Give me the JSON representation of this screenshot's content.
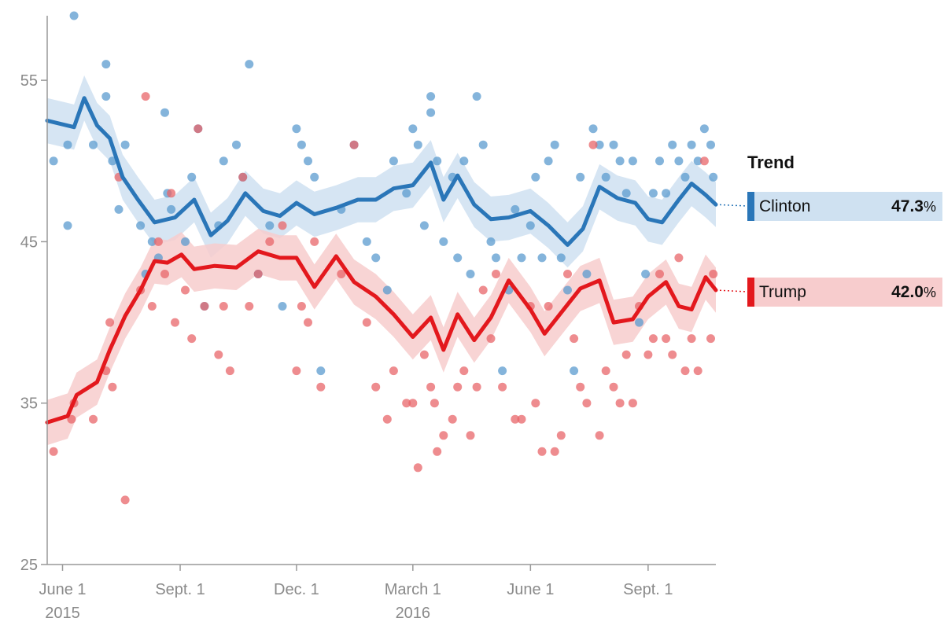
{
  "chart_data": {
    "type": "scatter",
    "title": "",
    "xlabel": "",
    "ylabel": "",
    "ylim": [
      25,
      59
    ],
    "xlim": [
      "2015-05-20",
      "2016-10-24"
    ],
    "y_ticks": [
      55,
      45,
      35,
      25
    ],
    "x_ticks": [
      {
        "date": "2015-06-01",
        "label": "June 1",
        "sublabel": "2015"
      },
      {
        "date": "2015-09-01",
        "label": "Sept. 1",
        "sublabel": ""
      },
      {
        "date": "2015-12-01",
        "label": "Dec. 1",
        "sublabel": ""
      },
      {
        "date": "2016-03-01",
        "label": "March 1",
        "sublabel": "2016"
      },
      {
        "date": "2016-06-01",
        "label": "June 1",
        "sublabel": ""
      },
      {
        "date": "2016-09-01",
        "label": "Sept. 1",
        "sublabel": ""
      }
    ],
    "grid": false,
    "legend_position": "right",
    "legend_title": "Trend",
    "series": [
      {
        "name": "Clinton",
        "color": "#2a76b8",
        "band_color": "#cfe1f1",
        "point_color": "#5b9bcf",
        "current_value": "47.3",
        "trend": [
          [
            "2015-05-20",
            52.5
          ],
          [
            "2015-06-10",
            52.1
          ],
          [
            "2015-06-18",
            53.9
          ],
          [
            "2015-06-28",
            52.2
          ],
          [
            "2015-07-08",
            51.4
          ],
          [
            "2015-07-18",
            49.0
          ],
          [
            "2015-07-30",
            47.6
          ],
          [
            "2015-08-12",
            46.2
          ],
          [
            "2015-08-28",
            46.5
          ],
          [
            "2015-09-12",
            47.6
          ],
          [
            "2015-09-25",
            45.4
          ],
          [
            "2015-10-08",
            46.3
          ],
          [
            "2015-10-22",
            48.0
          ],
          [
            "2015-11-05",
            46.9
          ],
          [
            "2015-11-18",
            46.6
          ],
          [
            "2015-12-01",
            47.4
          ],
          [
            "2015-12-15",
            46.7
          ],
          [
            "2016-01-01",
            47.1
          ],
          [
            "2016-01-18",
            47.6
          ],
          [
            "2016-02-01",
            47.6
          ],
          [
            "2016-02-15",
            48.3
          ],
          [
            "2016-03-01",
            48.5
          ],
          [
            "2016-03-15",
            49.9
          ],
          [
            "2016-03-25",
            47.6
          ],
          [
            "2016-04-05",
            49.1
          ],
          [
            "2016-04-18",
            47.3
          ],
          [
            "2016-05-01",
            46.4
          ],
          [
            "2016-05-15",
            46.5
          ],
          [
            "2016-06-01",
            46.9
          ],
          [
            "2016-06-15",
            46.0
          ],
          [
            "2016-06-30",
            44.8
          ],
          [
            "2016-07-12",
            45.8
          ],
          [
            "2016-07-25",
            48.4
          ],
          [
            "2016-08-08",
            47.7
          ],
          [
            "2016-08-22",
            47.4
          ],
          [
            "2016-09-01",
            46.4
          ],
          [
            "2016-09-12",
            46.2
          ],
          [
            "2016-09-25",
            47.6
          ],
          [
            "2016-10-05",
            48.6
          ],
          [
            "2016-10-16",
            47.9
          ],
          [
            "2016-10-24",
            47.3
          ]
        ],
        "polls": [
          [
            "2015-05-25",
            50
          ],
          [
            "2015-06-05",
            51
          ],
          [
            "2015-06-05",
            46
          ],
          [
            "2015-06-10",
            59
          ],
          [
            "2015-06-25",
            51
          ],
          [
            "2015-07-05",
            54
          ],
          [
            "2015-07-05",
            56
          ],
          [
            "2015-07-10",
            50
          ],
          [
            "2015-07-15",
            47
          ],
          [
            "2015-07-20",
            51
          ],
          [
            "2015-08-01",
            46
          ],
          [
            "2015-08-05",
            43
          ],
          [
            "2015-08-10",
            45
          ],
          [
            "2015-08-15",
            44
          ],
          [
            "2015-08-20",
            53
          ],
          [
            "2015-08-22",
            48
          ],
          [
            "2015-08-25",
            47
          ],
          [
            "2015-09-05",
            45
          ],
          [
            "2015-09-10",
            49
          ],
          [
            "2015-09-15",
            52
          ],
          [
            "2015-09-20",
            41
          ],
          [
            "2015-10-01",
            46
          ],
          [
            "2015-10-05",
            50
          ],
          [
            "2015-10-15",
            51
          ],
          [
            "2015-10-20",
            49
          ],
          [
            "2015-10-25",
            56
          ],
          [
            "2015-11-01",
            43
          ],
          [
            "2015-11-10",
            46
          ],
          [
            "2015-11-20",
            41
          ],
          [
            "2015-12-01",
            52
          ],
          [
            "2015-12-05",
            51
          ],
          [
            "2015-12-10",
            50
          ],
          [
            "2015-12-15",
            49
          ],
          [
            "2015-12-20",
            37
          ],
          [
            "2016-01-05",
            47
          ],
          [
            "2016-01-15",
            51
          ],
          [
            "2016-01-25",
            45
          ],
          [
            "2016-02-01",
            44
          ],
          [
            "2016-02-10",
            42
          ],
          [
            "2016-02-15",
            50
          ],
          [
            "2016-02-25",
            48
          ],
          [
            "2016-03-01",
            52
          ],
          [
            "2016-03-05",
            51
          ],
          [
            "2016-03-10",
            46
          ],
          [
            "2016-03-15",
            53
          ],
          [
            "2016-03-15",
            54
          ],
          [
            "2016-03-20",
            50
          ],
          [
            "2016-03-25",
            45
          ],
          [
            "2016-04-01",
            49
          ],
          [
            "2016-04-05",
            44
          ],
          [
            "2016-04-10",
            50
          ],
          [
            "2016-04-15",
            43
          ],
          [
            "2016-04-20",
            54
          ],
          [
            "2016-04-25",
            51
          ],
          [
            "2016-05-01",
            45
          ],
          [
            "2016-05-05",
            44
          ],
          [
            "2016-05-10",
            37
          ],
          [
            "2016-05-15",
            42
          ],
          [
            "2016-05-20",
            47
          ],
          [
            "2016-05-25",
            44
          ],
          [
            "2016-06-01",
            46
          ],
          [
            "2016-06-05",
            49
          ],
          [
            "2016-06-10",
            44
          ],
          [
            "2016-06-15",
            50
          ],
          [
            "2016-06-20",
            51
          ],
          [
            "2016-06-25",
            44
          ],
          [
            "2016-06-30",
            42
          ],
          [
            "2016-07-05",
            37
          ],
          [
            "2016-07-10",
            49
          ],
          [
            "2016-07-15",
            43
          ],
          [
            "2016-07-20",
            52
          ],
          [
            "2016-07-25",
            51
          ],
          [
            "2016-07-30",
            49
          ],
          [
            "2016-08-05",
            51
          ],
          [
            "2016-08-10",
            50
          ],
          [
            "2016-08-15",
            48
          ],
          [
            "2016-08-20",
            50
          ],
          [
            "2016-08-25",
            40
          ],
          [
            "2016-08-30",
            43
          ],
          [
            "2016-09-05",
            48
          ],
          [
            "2016-09-10",
            50
          ],
          [
            "2016-09-15",
            48
          ],
          [
            "2016-09-20",
            51
          ],
          [
            "2016-09-25",
            50
          ],
          [
            "2016-09-30",
            49
          ],
          [
            "2016-10-05",
            51
          ],
          [
            "2016-10-10",
            50
          ],
          [
            "2016-10-15",
            52
          ],
          [
            "2016-10-20",
            51
          ],
          [
            "2016-10-22",
            49
          ]
        ]
      },
      {
        "name": "Trump",
        "color": "#e3181d",
        "band_color": "#f7cccd",
        "point_color": "#e8666a",
        "current_value": "42.0",
        "trend": [
          [
            "2015-05-20",
            33.8
          ],
          [
            "2015-06-05",
            34.2
          ],
          [
            "2015-06-12",
            35.5
          ],
          [
            "2015-06-28",
            36.3
          ],
          [
            "2015-07-08",
            38.3
          ],
          [
            "2015-07-20",
            40.4
          ],
          [
            "2015-08-01",
            42.0
          ],
          [
            "2015-08-12",
            43.8
          ],
          [
            "2015-08-22",
            43.7
          ],
          [
            "2015-09-02",
            44.2
          ],
          [
            "2015-09-12",
            43.3
          ],
          [
            "2015-09-28",
            43.5
          ],
          [
            "2015-10-15",
            43.4
          ],
          [
            "2015-11-01",
            44.4
          ],
          [
            "2015-11-18",
            44.0
          ],
          [
            "2015-12-01",
            44.0
          ],
          [
            "2015-12-15",
            42.2
          ],
          [
            "2016-01-01",
            44.1
          ],
          [
            "2016-01-15",
            42.5
          ],
          [
            "2016-02-01",
            41.6
          ],
          [
            "2016-02-15",
            40.5
          ],
          [
            "2016-03-01",
            39.1
          ],
          [
            "2016-03-15",
            40.3
          ],
          [
            "2016-03-25",
            38.3
          ],
          [
            "2016-04-05",
            40.5
          ],
          [
            "2016-04-18",
            38.9
          ],
          [
            "2016-05-01",
            40.3
          ],
          [
            "2016-05-15",
            42.6
          ],
          [
            "2016-06-01",
            40.8
          ],
          [
            "2016-06-12",
            39.3
          ],
          [
            "2016-06-25",
            40.6
          ],
          [
            "2016-07-10",
            42.1
          ],
          [
            "2016-07-25",
            42.6
          ],
          [
            "2016-08-05",
            40.0
          ],
          [
            "2016-08-20",
            40.2
          ],
          [
            "2016-09-01",
            41.6
          ],
          [
            "2016-09-15",
            42.5
          ],
          [
            "2016-09-25",
            41.0
          ],
          [
            "2016-10-05",
            40.8
          ],
          [
            "2016-10-16",
            42.8
          ],
          [
            "2016-10-24",
            42.0
          ]
        ],
        "polls": [
          [
            "2015-05-25",
            32
          ],
          [
            "2015-06-10",
            35
          ],
          [
            "2015-06-08",
            34
          ],
          [
            "2015-06-25",
            34
          ],
          [
            "2015-07-05",
            37
          ],
          [
            "2015-07-08",
            40
          ],
          [
            "2015-07-10",
            36
          ],
          [
            "2015-07-15",
            49
          ],
          [
            "2015-07-20",
            29
          ],
          [
            "2015-08-01",
            42
          ],
          [
            "2015-08-05",
            54
          ],
          [
            "2015-08-10",
            41
          ],
          [
            "2015-08-15",
            45
          ],
          [
            "2015-08-20",
            43
          ],
          [
            "2015-08-25",
            48
          ],
          [
            "2015-08-28",
            40
          ],
          [
            "2015-09-05",
            42
          ],
          [
            "2015-09-10",
            39
          ],
          [
            "2015-09-15",
            52
          ],
          [
            "2015-09-20",
            41
          ],
          [
            "2015-10-01",
            38
          ],
          [
            "2015-10-05",
            41
          ],
          [
            "2015-10-10",
            37
          ],
          [
            "2015-10-20",
            49
          ],
          [
            "2015-10-25",
            41
          ],
          [
            "2015-11-01",
            43
          ],
          [
            "2015-11-10",
            45
          ],
          [
            "2015-11-20",
            46
          ],
          [
            "2015-12-01",
            37
          ],
          [
            "2015-12-05",
            41
          ],
          [
            "2015-12-10",
            40
          ],
          [
            "2015-12-15",
            45
          ],
          [
            "2015-12-20",
            36
          ],
          [
            "2016-01-05",
            43
          ],
          [
            "2016-01-15",
            51
          ],
          [
            "2016-01-25",
            40
          ],
          [
            "2016-02-01",
            36
          ],
          [
            "2016-02-10",
            34
          ],
          [
            "2016-02-15",
            37
          ],
          [
            "2016-02-25",
            35
          ],
          [
            "2016-03-01",
            35
          ],
          [
            "2016-03-05",
            31
          ],
          [
            "2016-03-10",
            38
          ],
          [
            "2016-03-15",
            36
          ],
          [
            "2016-03-18",
            35
          ],
          [
            "2016-03-20",
            32
          ],
          [
            "2016-03-25",
            33
          ],
          [
            "2016-04-01",
            34
          ],
          [
            "2016-04-05",
            36
          ],
          [
            "2016-04-10",
            37
          ],
          [
            "2016-04-15",
            33
          ],
          [
            "2016-04-20",
            36
          ],
          [
            "2016-04-25",
            42
          ],
          [
            "2016-05-01",
            39
          ],
          [
            "2016-05-05",
            43
          ],
          [
            "2016-05-10",
            36
          ],
          [
            "2016-05-20",
            34
          ],
          [
            "2016-05-25",
            34
          ],
          [
            "2016-06-01",
            41
          ],
          [
            "2016-06-05",
            35
          ],
          [
            "2016-06-10",
            32
          ],
          [
            "2016-06-15",
            41
          ],
          [
            "2016-06-20",
            32
          ],
          [
            "2016-06-25",
            33
          ],
          [
            "2016-06-30",
            43
          ],
          [
            "2016-07-05",
            39
          ],
          [
            "2016-07-10",
            36
          ],
          [
            "2016-07-15",
            35
          ],
          [
            "2016-07-20",
            51
          ],
          [
            "2016-07-25",
            33
          ],
          [
            "2016-07-30",
            37
          ],
          [
            "2016-08-05",
            36
          ],
          [
            "2016-08-10",
            35
          ],
          [
            "2016-08-15",
            38
          ],
          [
            "2016-08-20",
            35
          ],
          [
            "2016-08-25",
            41
          ],
          [
            "2016-09-01",
            38
          ],
          [
            "2016-09-05",
            39
          ],
          [
            "2016-09-10",
            43
          ],
          [
            "2016-09-15",
            39
          ],
          [
            "2016-09-20",
            38
          ],
          [
            "2016-09-25",
            44
          ],
          [
            "2016-09-30",
            37
          ],
          [
            "2016-10-05",
            39
          ],
          [
            "2016-10-10",
            37
          ],
          [
            "2016-10-15",
            50
          ],
          [
            "2016-10-20",
            39
          ],
          [
            "2016-10-22",
            43
          ]
        ]
      }
    ]
  }
}
